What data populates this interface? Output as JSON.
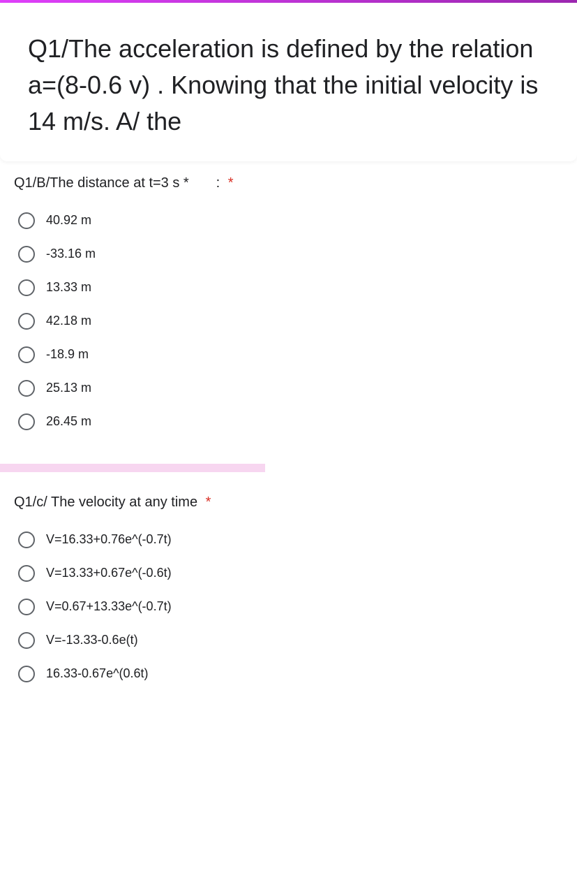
{
  "colors": {
    "top_gradient_start": "#e040fb",
    "top_gradient_end": "#9c27b0",
    "text": "#202124",
    "asterisk": "#d93025",
    "radio_border": "#5f6368",
    "divider": "#f7d6f0",
    "background": "#ffffff"
  },
  "header": {
    "title": "Q1/The acceleration is defined by the relation a=(8-0.6 v) . Knowing that the initial velocity is 14 m/s. A/ the"
  },
  "q1b": {
    "prompt_pre": "Q1/B/The distance at t=3 s *",
    "prompt_post": ": ",
    "options": [
      "40.92 m",
      "-33.16 m",
      "13.33 m",
      "42.18 m",
      "-18.9 m",
      "25.13 m",
      "26.45 m"
    ]
  },
  "q1c": {
    "prompt": "Q1/c/ The velocity at any time ",
    "options": [
      "V=16.33+0.76e^(-0.7t)",
      "V=13.33+0.67e^(-0.6t)",
      "V=0.67+13.33e^(-0.7t)",
      "V=-13.33-0.6e(t)",
      "16.33-0.67e^(0.6t)"
    ]
  }
}
